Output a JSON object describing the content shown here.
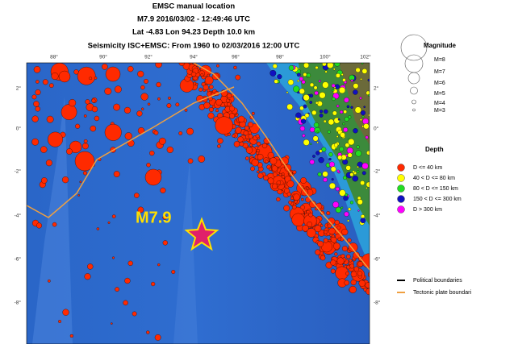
{
  "header": {
    "title": "EMSC manual location",
    "line2": "M7.9  2016/03/02 - 12:49:46 UTC",
    "line3": "Lat -4.83    Lon  94.23    Depth  10.0 km",
    "line4": "Seismicity ISC+EMSC: From 1960 to 02/03/2016 12:00 UTC"
  },
  "map": {
    "lon_labels": [
      "88°",
      "90°",
      "92°",
      "94°",
      "96°",
      "98°",
      "100°",
      "102°"
    ],
    "lat_labels": [
      "2°",
      "0°",
      "-2°",
      "-4°",
      "-6°",
      "-8°"
    ],
    "epicenter_label": "M7.9"
  },
  "legend": {
    "magnitude_title": "Magnitude",
    "magnitudes": [
      "M=8",
      "M=7",
      "M=6",
      "M=5",
      "M=4",
      "M=3"
    ],
    "depth_title": "Depth",
    "depths": [
      "D <= 40 km",
      "40 < D <= 80 km",
      "80 < D <= 150 km",
      "150 < D <= 300 km",
      "D > 300 km"
    ],
    "lines": [
      "Political boundaries",
      "Tectonic plate boundari"
    ]
  }
}
